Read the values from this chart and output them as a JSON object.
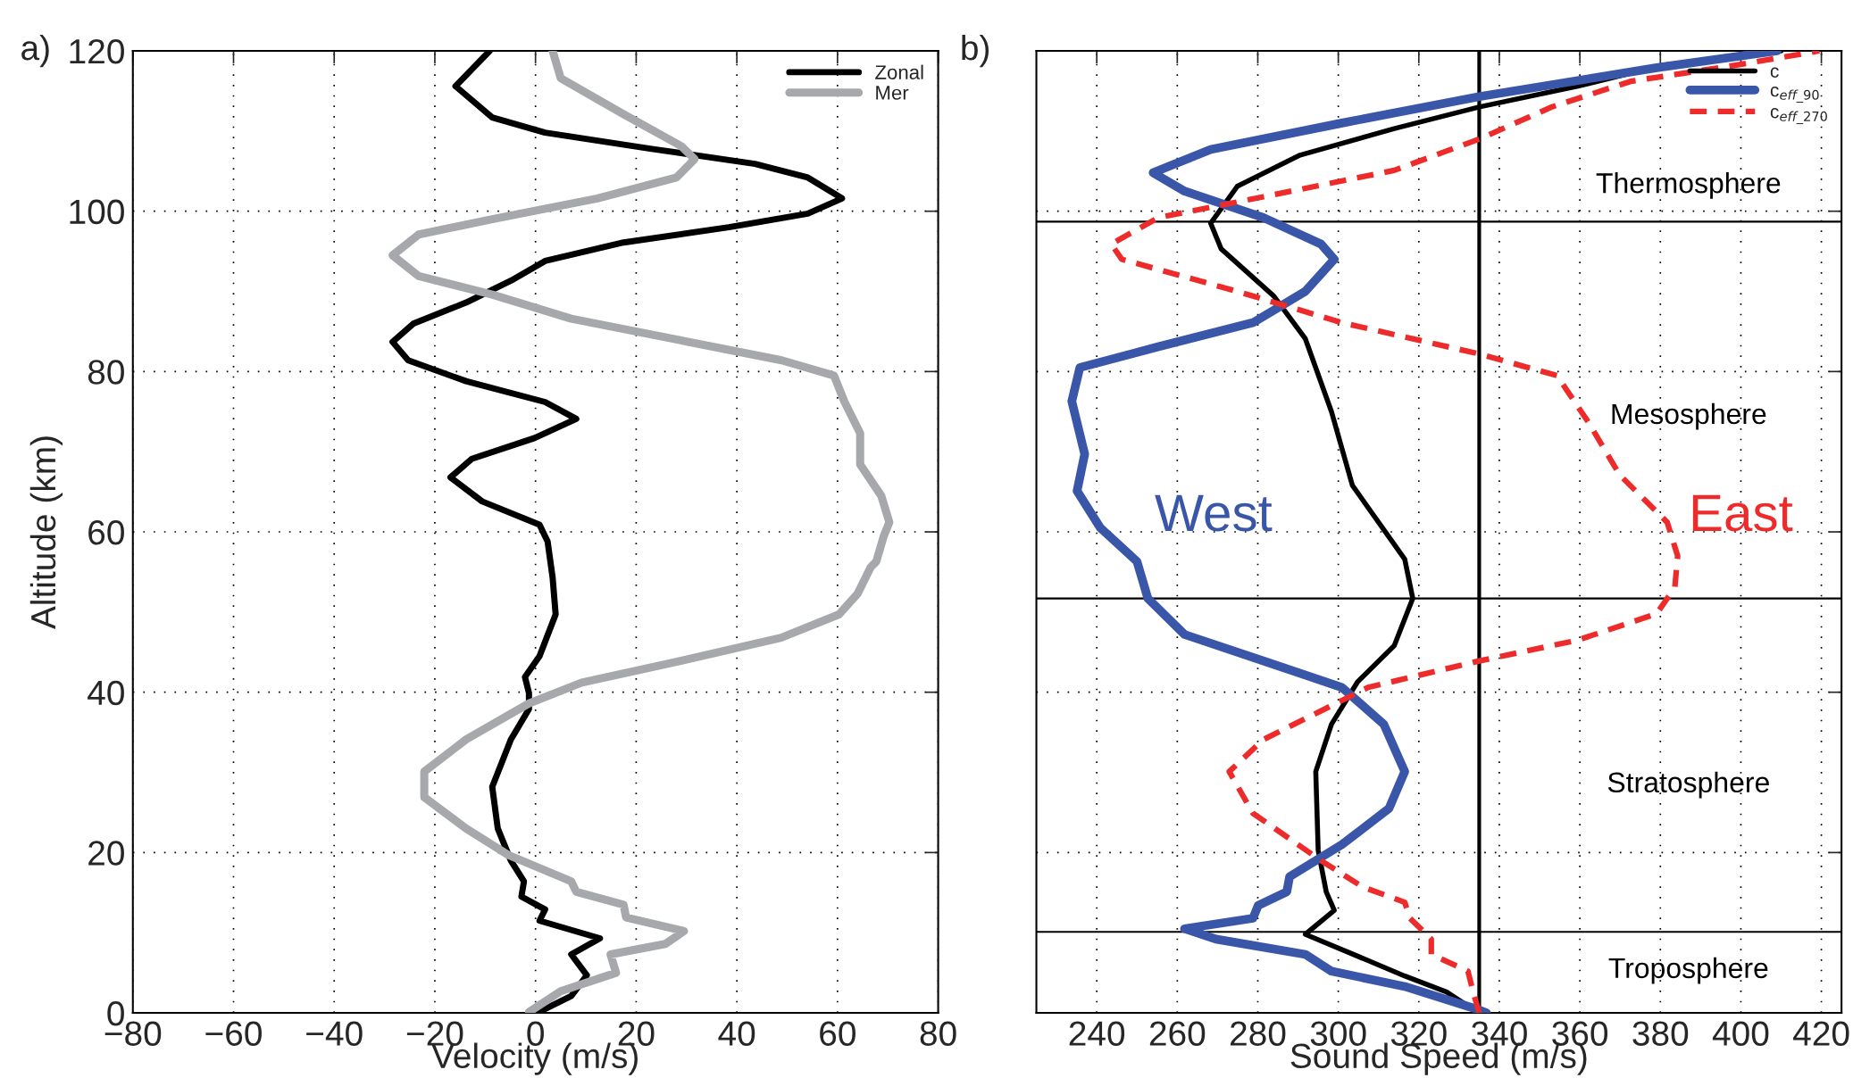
{
  "chart_data": [
    {
      "type": "line",
      "title": "a)",
      "xlabel": "Velocity (m/s)",
      "ylabel": "Altitude (km)",
      "xlim": [
        -80,
        80
      ],
      "xticks": [
        -80,
        -60,
        -40,
        -20,
        0,
        20,
        40,
        60,
        80
      ],
      "ylim": [
        0,
        120
      ],
      "yticks": [
        0,
        20,
        40,
        60,
        80,
        100,
        120
      ],
      "grid": true,
      "legend": "top right",
      "line_style": "solid",
      "marker": "none",
      "series": [
        {
          "name": "Zonal",
          "color": "#000000",
          "x": [
            0.3,
            1.9,
            7.1,
            10.2,
            7.1,
            12.8,
            0.8,
            1.9,
            -2.8,
            -2.3,
            -4.9,
            -7.5,
            -8.6,
            -4.9,
            -1.3,
            -1.3,
            -2.1,
            0.8,
            4.0,
            3.4,
            2.4,
            0.8,
            -10.6,
            -16.9,
            -12.7,
            -0.2,
            8.1,
            1.9,
            -13.8,
            -25.3,
            -28.4,
            -24.2,
            -13.8,
            -4.4,
            1.9,
            17.5,
            38.4,
            54.1,
            60.9,
            54.1,
            43.6,
            22.8,
            1.9,
            -8.6,
            -15.9,
            -9.1
          ],
          "values": [
            0,
            0.5,
            2.1,
            4.7,
            7.3,
            9.3,
            11.5,
            12.9,
            14.5,
            16.4,
            19.0,
            23.0,
            28.2,
            34.1,
            37.9,
            39.9,
            41.9,
            44.5,
            49.7,
            54.3,
            58.8,
            60.9,
            63.8,
            66.8,
            69.1,
            71.7,
            74.1,
            76.2,
            78.8,
            81.4,
            83.7,
            86.0,
            88.6,
            91.5,
            93.8,
            96.1,
            98.0,
            99.7,
            101.6,
            104.2,
            105.9,
            107.8,
            109.8,
            111.7,
            115.6,
            120
          ]
        },
        {
          "name": "Mer",
          "color": "#a6a8ab",
          "x": [
            -1.3,
            5.0,
            16.0,
            14.9,
            25.8,
            29.5,
            18.0,
            17.5,
            8.1,
            7.1,
            -5.4,
            -13.8,
            -22.1,
            -22.1,
            -13.8,
            -1.3,
            9.2,
            28.0,
            48.8,
            60.3,
            64.0,
            66.6,
            67.7,
            69.2,
            70.3,
            68.7,
            64.5,
            64.5,
            61.4,
            59.3,
            48.9,
            28.0,
            7.1,
            -8.6,
            -23.2,
            -28.4,
            -23.2,
            -8.6,
            12.3,
            28.0,
            31.6,
            29.0,
            17.5,
            5.0,
            3.4
          ],
          "values": [
            0.1,
            2.7,
            5.0,
            7.3,
            8.6,
            10.2,
            11.9,
            13.5,
            15.1,
            16.4,
            19.7,
            23.0,
            26.9,
            30.1,
            34.1,
            38.6,
            41.2,
            43.8,
            46.8,
            49.7,
            52.3,
            55.6,
            56.3,
            59.5,
            61.2,
            64.5,
            68.4,
            72.3,
            76.2,
            79.5,
            81.4,
            84.0,
            86.6,
            89.6,
            91.9,
            94.5,
            97.1,
            99.0,
            101.6,
            104.2,
            106.5,
            108.1,
            112.1,
            116.6,
            120
          ]
        }
      ]
    },
    {
      "type": "line",
      "title": "b)",
      "xlabel": "Sound Speed (m/s)",
      "xlim": [
        225,
        425
      ],
      "xticks": [
        240,
        260,
        280,
        300,
        320,
        340,
        360,
        380,
        400,
        420
      ],
      "ylim": [
        0,
        120
      ],
      "yticks": [
        0,
        20,
        40,
        60,
        80,
        100,
        120
      ],
      "tick_labels": "x",
      "grid": true,
      "legend": "top right",
      "marker": "none",
      "ref_lines": [
        {
          "axis": "x",
          "value": 335,
          "color": "#000000"
        },
        {
          "axis": "y",
          "value": 98.7,
          "color": "#000000"
        },
        {
          "axis": "y",
          "value": 51.7,
          "color": "#000000"
        },
        {
          "axis": "y",
          "value": 10.1,
          "color": "#000000"
        }
      ],
      "annotations": [
        "Thermosphere",
        "Mesosphere",
        "Stratosphere",
        "Troposphere",
        "West",
        "East"
      ],
      "series": [
        {
          "name": "c",
          "color": "#000000",
          "line_style": "solid",
          "x": [
            334.8,
            326.9,
            316.5,
            300.9,
            291.8,
            299.0,
            297.0,
            295.0,
            294.4,
            298.3,
            304.8,
            313.9,
            318.5,
            316.5,
            303.5,
            298.3,
            291.8,
            284.0,
            270.9,
            268.3,
            274.9,
            290.5,
            313.9,
            335.0,
            359.5,
            380.4,
            410.0
          ],
          "values": [
            0.0,
            2.6,
            4.6,
            7.9,
            9.8,
            12.8,
            15.1,
            20.3,
            30.1,
            36.0,
            41.3,
            45.8,
            51.7,
            56.6,
            65.8,
            75.0,
            84.1,
            89.4,
            95.3,
            98.5,
            103.1,
            107.0,
            110.3,
            113.0,
            115.6,
            118.2,
            120
          ]
        },
        {
          "name": "c$_{eff_90}$",
          "color": "#3a56a8",
          "line_style": "solid",
          "x": [
            336.8,
            334.8,
            316.5,
            298.3,
            291.8,
            269.6,
            261.8,
            278.8,
            280.1,
            287.2,
            287.9,
            300.9,
            312.6,
            316.5,
            311.3,
            300.9,
            281.4,
            261.8,
            252.7,
            250.0,
            240.9,
            235.1,
            237.0,
            233.8,
            235.8,
            255.3,
            278.8,
            291.8,
            299.0,
            295.7,
            281.4,
            261.8,
            254.0,
            268.3,
            300.9,
            335.0,
            379.1,
            409.0
          ],
          "values": [
            0,
            0.4,
            3.3,
            5.2,
            7.3,
            9.2,
            10.5,
            11.8,
            13.4,
            15.1,
            17.0,
            21.0,
            25.5,
            30.1,
            36.0,
            40.6,
            43.9,
            47.2,
            51.7,
            56.3,
            60.5,
            65.1,
            69.7,
            76.3,
            80.5,
            83.1,
            86.1,
            90.0,
            94.0,
            95.9,
            99.2,
            102.5,
            104.8,
            107.7,
            111.0,
            114.3,
            117.9,
            120.0
          ]
        },
        {
          "name": "c$_{eff_270}$",
          "color": "#ee2b2b",
          "line_style": "dashed",
          "x": [
            335.0,
            333.5,
            332.2,
            323.1,
            323.1,
            317.8,
            316.5,
            306.1,
            295.7,
            278.8,
            272.9,
            281.4,
            307.4,
            335.0,
            359.5,
            379.1,
            383.6,
            384.3,
            381.7,
            369.9,
            362.1,
            354.3,
            335.0,
            300.9,
            274.9,
            246.2,
            243.6,
            255.3,
            281.4,
            313.9,
            335.0,
            353.0,
            372.6,
            398.6,
            419.5
          ],
          "values": [
            0,
            2.6,
            5.2,
            7.3,
            9.2,
            11.8,
            13.8,
            15.7,
            19.0,
            24.9,
            30.1,
            34.1,
            40.6,
            43.9,
            46.5,
            49.8,
            53.1,
            57.0,
            61.2,
            67.1,
            73.7,
            79.5,
            82.2,
            86.1,
            90.0,
            94.0,
            95.9,
            99.2,
            101.8,
            105.1,
            109.0,
            113.0,
            116.2,
            118.2,
            120.0
          ]
        }
      ]
    }
  ]
}
